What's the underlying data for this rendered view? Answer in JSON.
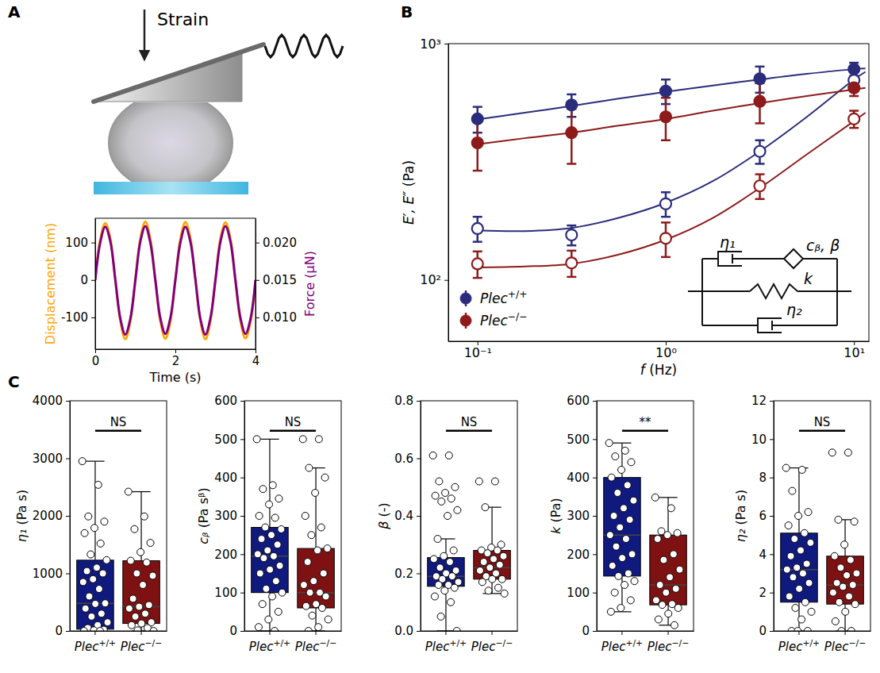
{
  "panel_labels": [
    "A",
    "B",
    "C"
  ],
  "schematic": {
    "label": "Strain"
  },
  "chart_data": [
    {
      "type": "line",
      "xlabel": "Time (s)",
      "ylabel": "Displacement (nm)",
      "y2label": "Force (µN)",
      "xlim": [
        0,
        4
      ],
      "xticks": [
        0,
        2,
        4
      ],
      "ylim": [
        -185,
        165
      ],
      "yticks": [
        -100,
        0,
        100
      ],
      "y2lim": [
        0.00575,
        0.02325
      ],
      "y2ticks": [
        {
          "value": 0.01,
          "label": "0.010"
        },
        0.015,
        {
          "value": 0.02,
          "label": "0.020"
        }
      ],
      "x": [
        0,
        0.125,
        0.25,
        0.375,
        0.5,
        0.625,
        0.75,
        0.875,
        1,
        1.125,
        1.25,
        1.375,
        1.5,
        1.625,
        1.75,
        1.875,
        2,
        2.125,
        2.25,
        2.375,
        2.5,
        2.625,
        2.75,
        2.875,
        3,
        3.125,
        3.25,
        3.375,
        3.5,
        3.625,
        3.75,
        3.875,
        4
      ],
      "series": [
        {
          "color": "#ffa500",
          "values": [
            0,
            108,
            152,
            112,
            2,
            -108,
            -158,
            -112,
            -2,
            110,
            156,
            110,
            0,
            -110,
            -157,
            -111,
            0,
            109,
            155,
            112,
            1,
            -109,
            -158,
            -110,
            0,
            111,
            154,
            110,
            -1,
            -110,
            -156,
            -112,
            0
          ]
        },
        {
          "color": "#800080",
          "axis": "y2",
          "values": [
            0.015,
            0.02,
            0.0221,
            0.0202,
            0.0151,
            0.0099,
            0.0077,
            0.0098,
            0.0149,
            0.0201,
            0.0222,
            0.02,
            0.015,
            0.0099,
            0.0078,
            0.0099,
            0.015,
            0.02,
            0.0221,
            0.0201,
            0.0151,
            0.0098,
            0.0077,
            0.0099,
            0.015,
            0.0201,
            0.0222,
            0.0201,
            0.0149,
            0.0099,
            0.0078,
            0.0098,
            0.015
          ]
        }
      ]
    },
    {
      "type": "scatter",
      "log": true,
      "xlabel": "f (Hz)",
      "ylabel": "E′, E″ (Pa)",
      "xlim": [
        0.07,
        12
      ],
      "xticks": [
        {
          "value": 0.1,
          "label": "10⁻¹"
        },
        {
          "value": 1,
          "label": "10⁰"
        },
        {
          "value": 10,
          "label": "10¹"
        }
      ],
      "ylim": [
        55,
        1000
      ],
      "yticks": [
        {
          "value": 100,
          "label": "10²"
        },
        {
          "value": 1000,
          "label": "10³"
        }
      ],
      "legend": "lower left",
      "x": [
        0.1,
        0.316,
        1,
        3.16,
        10
      ],
      "fit_x": [
        0.1,
        0.178,
        0.316,
        0.562,
        1,
        1.78,
        3.16,
        5.62,
        10,
        11.5
      ],
      "series": [
        {
          "name": "Plec+/+",
          "color": "#2b2d7c",
          "marker": "filled",
          "values": [
            480,
            550,
            630,
            710,
            780
          ],
          "errors": [
            60,
            60,
            75,
            90,
            50
          ],
          "fit": [
            478,
            510,
            545,
            585,
            625,
            665,
            705,
            745,
            780,
            785
          ]
        },
        {
          "name": "Plec+/+",
          "color": "#2b2d7c",
          "marker": "open",
          "values": [
            165,
            155,
            210,
            350,
            700
          ],
          "errors": [
            20,
            15,
            25,
            40,
            60
          ],
          "fit": [
            162,
            161,
            166,
            183,
            212,
            262,
            350,
            490,
            705,
            760
          ]
        },
        {
          "name": "Plec−/−",
          "color": "#8e1b1b",
          "marker": "filled",
          "values": [
            380,
            420,
            490,
            570,
            650
          ],
          "errors": [
            90,
            110,
            100,
            110,
            50
          ],
          "fit": [
            375,
            398,
            420,
            450,
            480,
            520,
            560,
            600,
            640,
            650
          ]
        },
        {
          "name": "Plec−/−",
          "color": "#8e1b1b",
          "marker": "open",
          "values": [
            117,
            118,
            150,
            250,
            480
          ],
          "errors": [
            15,
            15,
            25,
            30,
            40
          ],
          "fit": [
            113,
            114,
            117,
            128,
            148,
            183,
            245,
            340,
            470,
            510
          ]
        }
      ],
      "inset_labels": [
        "η₁",
        "cᵦ, β",
        "k",
        "η₂"
      ]
    },
    {
      "type": "box",
      "ylabel": "η₁ (Pa s)",
      "categories": [
        "Plec+/+",
        "Plec−/−"
      ],
      "colors": [
        "#101a7e",
        "#7e1212"
      ],
      "ylim": [
        0,
        4000
      ],
      "yticks": [
        0,
        1000,
        2000,
        3000,
        4000
      ],
      "boxes": [
        {
          "whisker_low": 0,
          "q1": 30,
          "median": 480,
          "q3": 1230,
          "whisker_high": 2950
        },
        {
          "whisker_low": 0,
          "q1": 130,
          "median": 420,
          "q3": 1220,
          "whisker_high": 2420
        }
      ],
      "points": [
        [
          2950,
          2540,
          1990,
          1900,
          1790,
          1700,
          1520,
          1330,
          1230,
          1100,
          1040,
          1000,
          900,
          850,
          730,
          600,
          480,
          470,
          390,
          300,
          250,
          150,
          100,
          50,
          20,
          10,
          0,
          0
        ],
        [
          2420,
          1990,
          1770,
          1530,
          1370,
          1220,
          1190,
          1000,
          960,
          800,
          560,
          450,
          420,
          390,
          300,
          250,
          150,
          130,
          100,
          50,
          10,
          0
        ]
      ],
      "annotation": "NS"
    },
    {
      "type": "box",
      "ylabel": "cᵦ (Pa sᵝ)",
      "categories": [
        "Plec+/+",
        "Plec−/−"
      ],
      "colors": [
        "#101a7e",
        "#7e1212"
      ],
      "ylim": [
        0,
        600
      ],
      "yticks": [
        0,
        100,
        200,
        300,
        400,
        500,
        600
      ],
      "boxes": [
        {
          "whisker_low": 0,
          "q1": 100,
          "median": 195,
          "q3": 270,
          "whisker_high": 500
        },
        {
          "whisker_low": 0,
          "q1": 60,
          "median": 100,
          "q3": 215,
          "whisker_high": 425
        }
      ],
      "points": [
        [
          500,
          380,
          370,
          345,
          330,
          300,
          295,
          270,
          265,
          250,
          240,
          225,
          210,
          200,
          195,
          190,
          170,
          160,
          150,
          130,
          110,
          100,
          90,
          70,
          50,
          30,
          10,
          0
        ],
        [
          500,
          500,
          425,
          400,
          360,
          300,
          270,
          250,
          215,
          210,
          180,
          150,
          130,
          120,
          100,
          100,
          90,
          70,
          65,
          60,
          40,
          30,
          10,
          0
        ]
      ],
      "annotation": "NS"
    },
    {
      "type": "box",
      "ylabel": "β (-)",
      "categories": [
        "Plec+/+",
        "Plec−/−"
      ],
      "colors": [
        "#101a7e",
        "#7e1212"
      ],
      "ylim": [
        0,
        0.8
      ],
      "yticks": [
        {
          "value": 0,
          "label": "0.0"
        },
        0.2,
        0.4,
        0.6,
        0.8
      ],
      "boxes": [
        {
          "whisker_low": 0,
          "q1": 0.155,
          "median": 0.19,
          "q3": 0.255,
          "whisker_high": 0.32
        },
        {
          "whisker_low": 0.13,
          "q1": 0.18,
          "median": 0.22,
          "q3": 0.28,
          "whisker_high": 0.43
        }
      ],
      "points": [
        [
          0.61,
          0.61,
          0.52,
          0.5,
          0.48,
          0.47,
          0.46,
          0.45,
          0.42,
          0.4,
          0.32,
          0.28,
          0.26,
          0.25,
          0.24,
          0.22,
          0.21,
          0.2,
          0.19,
          0.19,
          0.18,
          0.17,
          0.16,
          0.16,
          0.15,
          0.14,
          0.12,
          0.1,
          0.05,
          0
        ],
        [
          0.52,
          0.52,
          0.43,
          0.3,
          0.29,
          0.28,
          0.28,
          0.27,
          0.26,
          0.25,
          0.24,
          0.23,
          0.22,
          0.21,
          0.2,
          0.19,
          0.18,
          0.18,
          0.17,
          0.15,
          0.14,
          0.13
        ]
      ],
      "annotation": "NS"
    },
    {
      "type": "box",
      "ylabel": "k (Pa)",
      "categories": [
        "Plec+/+",
        "Plec−/−"
      ],
      "colors": [
        "#101a7e",
        "#7e1212"
      ],
      "ylim": [
        0,
        600
      ],
      "yticks": [
        0,
        100,
        200,
        300,
        400,
        500,
        600
      ],
      "boxes": [
        {
          "whisker_low": 50,
          "q1": 143,
          "median": 250,
          "q3": 400,
          "whisker_high": 490
        },
        {
          "whisker_low": 15,
          "q1": 68,
          "median": 120,
          "q3": 250,
          "whisker_high": 348
        }
      ],
      "points": [
        [
          490,
          470,
          455,
          440,
          420,
          400,
          380,
          360,
          340,
          320,
          300,
          290,
          270,
          250,
          240,
          220,
          200,
          190,
          170,
          150,
          143,
          130,
          120,
          100,
          80,
          60,
          50
        ],
        [
          348,
          320,
          260,
          255,
          250,
          240,
          200,
          185,
          160,
          140,
          120,
          110,
          100,
          80,
          70,
          68,
          60,
          45,
          30,
          15
        ]
      ],
      "annotation": "**"
    },
    {
      "type": "box",
      "ylabel": "η₂ (Pa s)",
      "categories": [
        "Plec+/+",
        "Plec−/−"
      ],
      "colors": [
        "#101a7e",
        "#7e1212"
      ],
      "ylim": [
        0,
        12
      ],
      "yticks": [
        0,
        2,
        4,
        6,
        8,
        10,
        12
      ],
      "boxes": [
        {
          "whisker_low": 0,
          "q1": 1.5,
          "median": 3.2,
          "q3": 5.1,
          "whisker_high": 8.5
        },
        {
          "whisker_low": 0,
          "q1": 1.4,
          "median": 2.4,
          "q3": 3.9,
          "whisker_high": 5.8
        }
      ],
      "points": [
        [
          8.5,
          8.4,
          7.3,
          6.2,
          6,
          5.5,
          5.1,
          4.8,
          4.6,
          4.2,
          3.9,
          3.5,
          3.3,
          3.2,
          3,
          2.8,
          2.5,
          2.2,
          1.8,
          1.5,
          1.2,
          1,
          0.6,
          0,
          0,
          0
        ],
        [
          9.3,
          9.3,
          5.8,
          5.7,
          4.5,
          3.9,
          3.7,
          3.3,
          3,
          2.9,
          2.5,
          2.4,
          2.3,
          2,
          1.8,
          1.5,
          1.4,
          1,
          0.5,
          0,
          0
        ]
      ],
      "annotation": "NS"
    }
  ]
}
